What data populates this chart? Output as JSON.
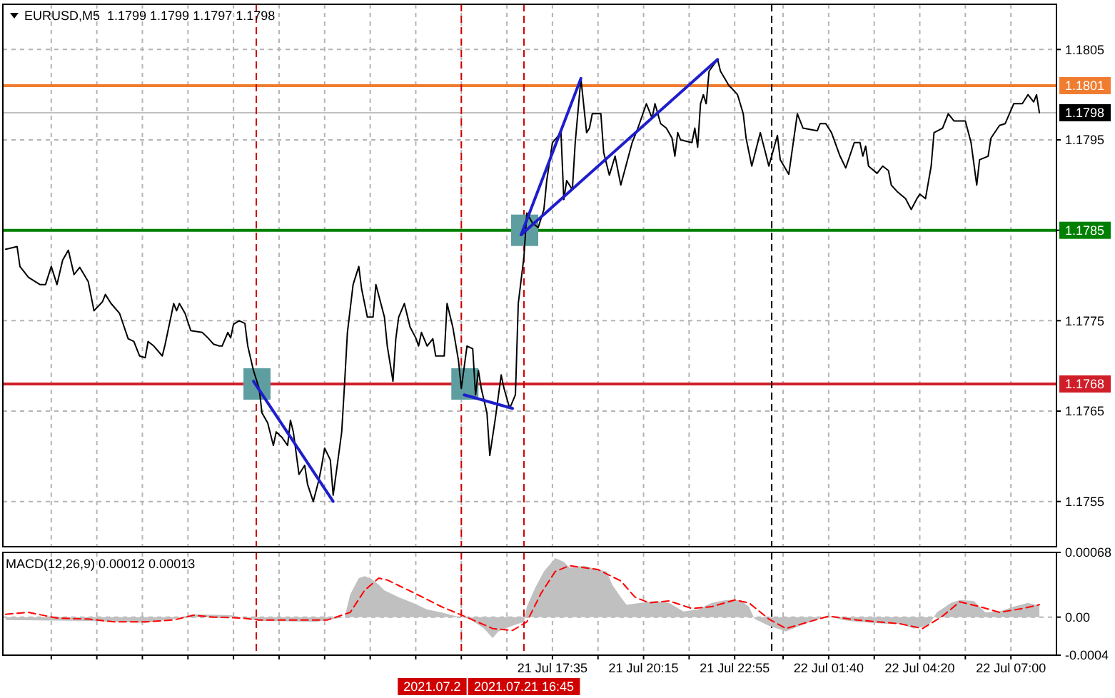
{
  "chart_data": [
    {
      "type": "line",
      "title": "EURUSD,M5  1.1799 1.1799 1.1797 1.1798",
      "xlim": [
        "2021-07-21T01:30",
        "2021-07-22T08:20"
      ],
      "ylim": [
        1.175,
        1.181
      ],
      "xticks": [
        "2021-07-21T02:55",
        "2021-07-21T04:15",
        "2021-07-21T05:35",
        "2021-07-21T06:55",
        "2021-07-21T08:15",
        "2021-07-21T09:35",
        "2021-07-21T10:55",
        "2021-07-21T12:15",
        "2021-07-21T13:35",
        "2021-07-21T14:55",
        "2021-07-21T16:15",
        "2021-07-21T17:35",
        "2021-07-21T18:55",
        "2021-07-21T20:15",
        "2021-07-21T21:35",
        "2021-07-21T22:55",
        "2021-07-22T00:20",
        "2021-07-22T01:40",
        "2021-07-22T03:00",
        "2021-07-22T04:20",
        "2021-07-22T05:40",
        "2021-07-22T07:00"
      ],
      "yticks": [
        1.1805,
        1.1795,
        {
          "value": 1.1785,
          "label": null
        },
        1.1775,
        1.1765,
        1.1755
      ],
      "tick_labels": "y",
      "grid": true,
      "ref_lines": [
        {
          "axis": "y",
          "value": 1.1801,
          "label": "1.1801",
          "color": "#f07c30"
        },
        {
          "axis": "y",
          "value": 1.1798,
          "label": "1.1798",
          "color": "#c0c0c0"
        },
        {
          "axis": "y",
          "value": 1.1785,
          "label": "1.1785",
          "color": "#008000"
        },
        {
          "axis": "y",
          "value": 1.1768,
          "label": "1.1768",
          "color": "#d01e28"
        },
        {
          "axis": "x",
          "value": "2021-07-21T08:55",
          "color": "#d00000",
          "line_style": "dashed"
        },
        {
          "axis": "x",
          "value": "2021-07-21T14:55",
          "color": "#d00000",
          "line_style": "dashed"
        },
        {
          "axis": "x",
          "value": "2021-07-21T16:45",
          "color": "#d00000",
          "line_style": "dashed"
        },
        {
          "axis": "x",
          "value": "2021-07-22T00:00",
          "color": "#000000",
          "line_style": "dashed"
        }
      ],
      "series": [
        {
          "type": "scatter",
          "marker": "square",
          "color": "#5f9ea0",
          "x": [
            "2021-07-21T08:55",
            "2021-07-21T15:00",
            "2021-07-21T16:45"
          ],
          "values": [
            1.1768,
            1.1768,
            1.1785
          ]
        },
        {
          "color": "#000000",
          "x": [
            "2021-07-21T01:35",
            "2021-07-21T01:55",
            "2021-07-21T02:00",
            "2021-07-21T02:15",
            "2021-07-21T02:35",
            "2021-07-21T02:45",
            "2021-07-21T02:55",
            "2021-07-21T03:05",
            "2021-07-21T03:15",
            "2021-07-21T03:25",
            "2021-07-21T03:35",
            "2021-07-21T03:45",
            "2021-07-21T04:00",
            "2021-07-21T04:10",
            "2021-07-21T04:25",
            "2021-07-21T04:30",
            "2021-07-21T04:40",
            "2021-07-21T04:55",
            "2021-07-21T05:10",
            "2021-07-21T05:20",
            "2021-07-21T05:30",
            "2021-07-21T05:40",
            "2021-07-21T05:45",
            "2021-07-21T05:55",
            "2021-07-21T06:10",
            "2021-07-21T06:15",
            "2021-07-21T06:30",
            "2021-07-21T06:35",
            "2021-07-21T06:40",
            "2021-07-21T06:50",
            "2021-07-21T07:00",
            "2021-07-21T07:20",
            "2021-07-21T07:30",
            "2021-07-21T07:40",
            "2021-07-21T07:50",
            "2021-07-21T07:55",
            "2021-07-21T08:05",
            "2021-07-21T08:10",
            "2021-07-21T08:15",
            "2021-07-21T08:25",
            "2021-07-21T08:35",
            "2021-07-21T08:40",
            "2021-07-21T08:50",
            "2021-07-21T09:00",
            "2021-07-21T09:05",
            "2021-07-21T09:15",
            "2021-07-21T09:25",
            "2021-07-21T09:30",
            "2021-07-21T09:40",
            "2021-07-21T09:50",
            "2021-07-21T09:55",
            "2021-07-21T10:00",
            "2021-07-21T10:10",
            "2021-07-21T10:20",
            "2021-07-21T10:25",
            "2021-07-21T10:35",
            "2021-07-21T10:45",
            "2021-07-21T10:50",
            "2021-07-21T10:55",
            "2021-07-21T11:05",
            "2021-07-21T11:10",
            "2021-07-21T11:15",
            "2021-07-21T11:25",
            "2021-07-21T11:30",
            "2021-07-21T11:35",
            "2021-07-21T11:45",
            "2021-07-21T11:55",
            "2021-07-21T12:00",
            "2021-07-21T12:10",
            "2021-07-21T12:20",
            "2021-07-21T12:25",
            "2021-07-21T12:40",
            "2021-07-21T12:45",
            "2021-07-21T12:55",
            "2021-07-21T13:00",
            "2021-07-21T13:05",
            "2021-07-21T13:15",
            "2021-07-21T13:25",
            "2021-07-21T13:35",
            "2021-07-21T13:40",
            "2021-07-21T13:45",
            "2021-07-21T13:55",
            "2021-07-21T14:05",
            "2021-07-21T14:10",
            "2021-07-21T14:25",
            "2021-07-21T14:30",
            "2021-07-21T14:40",
            "2021-07-21T14:50",
            "2021-07-21T14:55",
            "2021-07-21T15:05",
            "2021-07-21T15:15",
            "2021-07-21T15:20",
            "2021-07-21T15:25",
            "2021-07-21T15:30",
            "2021-07-21T15:40",
            "2021-07-21T15:45",
            "2021-07-21T15:55",
            "2021-07-21T16:05",
            "2021-07-21T16:10",
            "2021-07-21T16:20",
            "2021-07-21T16:30",
            "2021-07-21T16:35",
            "2021-07-21T16:45",
            "2021-07-21T16:50",
            "2021-07-21T17:00",
            "2021-07-21T17:10",
            "2021-07-21T17:20",
            "2021-07-21T17:25",
            "2021-07-21T17:35",
            "2021-07-21T17:50",
            "2021-07-21T17:55",
            "2021-07-21T18:00",
            "2021-07-21T18:10",
            "2021-07-21T18:15",
            "2021-07-21T18:25",
            "2021-07-21T18:35",
            "2021-07-21T18:40",
            "2021-07-21T18:45",
            "2021-07-21T19:00",
            "2021-07-21T19:05",
            "2021-07-21T19:15",
            "2021-07-21T19:25",
            "2021-07-21T19:35",
            "2021-07-21T19:55",
            "2021-07-21T20:05",
            "2021-07-21T20:20",
            "2021-07-21T20:30",
            "2021-07-21T20:35",
            "2021-07-21T20:45",
            "2021-07-21T20:55",
            "2021-07-21T21:05",
            "2021-07-21T21:10",
            "2021-07-21T21:15",
            "2021-07-21T21:20",
            "2021-07-21T21:40",
            "2021-07-21T21:45",
            "2021-07-21T21:50",
            "2021-07-21T21:55",
            "2021-07-21T22:00",
            "2021-07-21T22:05",
            "2021-07-21T22:10",
            "2021-07-21T22:25",
            "2021-07-21T22:30",
            "2021-07-21T22:45",
            "2021-07-21T22:50",
            "2021-07-21T23:00",
            "2021-07-21T23:10",
            "2021-07-21T23:15",
            "2021-07-21T23:25",
            "2021-07-21T23:40",
            "2021-07-21T23:55",
            "2021-07-22T00:10",
            "2021-07-22T00:15",
            "2021-07-22T00:30",
            "2021-07-22T00:45",
            "2021-07-22T00:55",
            "2021-07-22T01:20",
            "2021-07-22T01:25",
            "2021-07-22T01:35",
            "2021-07-22T01:45",
            "2021-07-22T02:00",
            "2021-07-22T02:10",
            "2021-07-22T02:25",
            "2021-07-22T02:35",
            "2021-07-22T02:40",
            "2021-07-22T02:45",
            "2021-07-22T02:50",
            "2021-07-22T03:05",
            "2021-07-22T03:15",
            "2021-07-22T03:25",
            "2021-07-22T03:30",
            "2021-07-22T03:40",
            "2021-07-22T03:55",
            "2021-07-22T04:05",
            "2021-07-22T04:15",
            "2021-07-22T04:20",
            "2021-07-22T04:30",
            "2021-07-22T04:40",
            "2021-07-22T04:45",
            "2021-07-22T05:00",
            "2021-07-22T05:10",
            "2021-07-22T05:20",
            "2021-07-22T05:40",
            "2021-07-22T05:50",
            "2021-07-22T06:00",
            "2021-07-22T06:05",
            "2021-07-22T06:20",
            "2021-07-22T06:25",
            "2021-07-22T06:40",
            "2021-07-22T06:50",
            "2021-07-22T07:05",
            "2021-07-22T07:20",
            "2021-07-22T07:30",
            "2021-07-22T07:40",
            "2021-07-22T07:45",
            "2021-07-22T07:50"
          ],
          "values": [
            1.17829,
            1.17832,
            1.1781,
            1.17798,
            1.1779,
            1.1779,
            1.1781,
            1.1779,
            1.17817,
            1.17828,
            1.17801,
            1.17809,
            1.17793,
            1.17761,
            1.17771,
            1.17779,
            1.17769,
            1.17758,
            1.1773,
            1.17727,
            1.17711,
            1.17709,
            1.17727,
            1.17722,
            1.17711,
            1.17724,
            1.17769,
            1.17761,
            1.17769,
            1.17758,
            1.17739,
            1.17737,
            1.17731,
            1.17724,
            1.17722,
            1.17722,
            1.17737,
            1.17731,
            1.17746,
            1.1775,
            1.17747,
            1.17722,
            1.17695,
            1.17675,
            1.17648,
            1.17637,
            1.17612,
            1.17627,
            1.17621,
            1.17612,
            1.1764,
            1.17627,
            1.1758,
            1.1759,
            1.17569,
            1.1755,
            1.17574,
            1.1759,
            1.17609,
            1.17596,
            1.17557,
            1.1758,
            1.17627,
            1.1768,
            1.17737,
            1.1779,
            1.1781,
            1.17785,
            1.17754,
            1.17754,
            1.1779,
            1.17754,
            1.17722,
            1.17683,
            1.1773,
            1.17754,
            1.17769,
            1.17743,
            1.17731,
            1.17722,
            1.17737,
            1.17722,
            1.1773,
            1.17711,
            1.17711,
            1.17769,
            1.17743,
            1.17706,
            1.17675,
            1.17722,
            1.17719,
            1.17668,
            1.17695,
            1.17675,
            1.17648,
            1.17601,
            1.17643,
            1.1769,
            1.17675,
            1.17653,
            1.17668,
            1.17769,
            1.17821,
            1.17869,
            1.17858,
            1.17853,
            1.17873,
            1.17905,
            1.17947,
            1.17958,
            1.17884,
            1.17905,
            1.17895,
            1.17947,
            1.18018,
            1.17958,
            1.17963,
            1.17979,
            1.17979,
            1.17936,
            1.17911,
            1.17932,
            1.179,
            1.17947,
            1.17963,
            1.1799,
            1.17974,
            1.1799,
            1.17968,
            1.17963,
            1.17952,
            1.17932,
            1.17958,
            1.1795,
            1.17947,
            1.17963,
            1.17942,
            1.1799,
            1.18,
            1.1799,
            1.18026,
            1.18039,
            1.18026,
            1.1801,
            1.18007,
            1.18,
            1.17979,
            1.17952,
            1.17921,
            1.17958,
            1.17921,
            1.17955,
            1.17928,
            1.17912,
            1.17979,
            1.17963,
            1.1796,
            1.17968,
            1.17968,
            1.17958,
            1.17932,
            1.17919,
            1.17947,
            1.17947,
            1.17932,
            1.17943,
            1.17921,
            1.17913,
            1.17921,
            1.17916,
            1.179,
            1.17893,
            1.17885,
            1.17873,
            1.17885,
            1.1789,
            1.17885,
            1.17921,
            1.17958,
            1.17963,
            1.17979,
            1.17971,
            1.17971,
            1.17947,
            1.179,
            1.17928,
            1.17932,
            1.17952,
            1.17966,
            1.17968,
            1.1799,
            1.1799,
            1.18,
            1.17992,
            1.18,
            1.1798
          ]
        },
        {
          "color": "#1e1ecc",
          "x": [
            "2021-07-21T08:50",
            "2021-07-21T11:10"
          ],
          "values": [
            1.17683,
            1.1755
          ]
        },
        {
          "color": "#1e1ecc",
          "x": [
            "2021-07-21T15:00",
            "2021-07-21T16:25"
          ],
          "values": [
            1.17668,
            1.17653
          ]
        },
        {
          "color": "#1e1ecc",
          "x": [
            "2021-07-21T16:40",
            "2021-07-21T18:25"
          ],
          "values": [
            1.17845,
            1.18018
          ]
        },
        {
          "color": "#1e1ecc",
          "x": [
            "2021-07-21T16:40",
            "2021-07-21T22:25"
          ],
          "values": [
            1.17845,
            1.18039
          ]
        }
      ]
    },
    {
      "type": "area",
      "title": "MACD(12,26,9) 0.00012 0.00013",
      "xlim": [
        "2021-07-21T01:30",
        "2021-07-22T08:20"
      ],
      "ylim": [
        -0.0004,
        0.00068
      ],
      "xticks": [
        {
          "value": "2021-07-21T02:55",
          "label": null
        },
        {
          "value": "2021-07-21T04:15",
          "label": null
        },
        {
          "value": "2021-07-21T05:35",
          "label": null
        },
        {
          "value": "2021-07-21T06:55",
          "label": null
        },
        {
          "value": "2021-07-21T08:15",
          "label": null
        },
        {
          "value": "2021-07-21T09:35",
          "label": null
        },
        {
          "value": "2021-07-21T10:55",
          "label": null
        },
        {
          "value": "2021-07-21T12:15",
          "label": null
        },
        {
          "value": "2021-07-21T13:35",
          "label": null
        },
        {
          "value": "2021-07-21T14:55",
          "label": null
        },
        {
          "value": "2021-07-21T16:15",
          "label": null
        },
        {
          "value": "2021-07-21T17:35",
          "label": "21 Jul 17:35"
        },
        {
          "value": "2021-07-21T18:55",
          "label": null
        },
        {
          "value": "2021-07-21T20:15",
          "label": "21 Jul 20:15"
        },
        {
          "value": "2021-07-21T21:35",
          "label": null
        },
        {
          "value": "2021-07-21T22:55",
          "label": "21 Jul 22:55"
        },
        {
          "value": "2021-07-22T00:20",
          "label": null
        },
        {
          "value": "2021-07-22T01:40",
          "label": "22 Jul 01:40"
        },
        {
          "value": "2021-07-22T03:00",
          "label": null
        },
        {
          "value": "2021-07-22T04:20",
          "label": "22 Jul 04:20"
        },
        {
          "value": "2021-07-22T05:40",
          "label": null
        },
        {
          "value": "2021-07-22T07:00",
          "label": "22 Jul 07:00"
        }
      ],
      "yticks": [
        0.00068,
        {
          "value": 0,
          "label": "0.00"
        },
        -0.0004
      ],
      "grid": true,
      "ref_lines": [
        {
          "axis": "x",
          "value": "2021-07-21T08:55",
          "color": "#d00000",
          "line_style": "dashed"
        },
        {
          "axis": "x",
          "value": "2021-07-21T14:55",
          "label": "2021.07.2",
          "color": "#d00000",
          "line_style": "dashed"
        },
        {
          "axis": "x",
          "value": "2021-07-21T16:45",
          "label": "2021.07.21 16:45",
          "color": "#d00000",
          "line_style": "dashed"
        },
        {
          "axis": "x",
          "value": "2021-07-22T00:00",
          "color": "#000000",
          "line_style": "dashed"
        }
      ],
      "series": [
        {
          "color": "#c0c0c0",
          "x": [
            "2021-07-21T01:35",
            "2021-07-21T04:00",
            "2021-07-21T05:40",
            "2021-07-21T06:30",
            "2021-07-21T07:05",
            "2021-07-21T08:10",
            "2021-07-21T09:00",
            "2021-07-21T10:40",
            "2021-07-21T11:30",
            "2021-07-21T11:40",
            "2021-07-21T11:55",
            "2021-07-21T12:05",
            "2021-07-21T12:15",
            "2021-07-21T12:30",
            "2021-07-21T12:40",
            "2021-07-21T13:05",
            "2021-07-21T13:30",
            "2021-07-21T13:55",
            "2021-07-21T14:20",
            "2021-07-21T14:45",
            "2021-07-21T15:10",
            "2021-07-21T15:35",
            "2021-07-21T15:50",
            "2021-07-21T16:00",
            "2021-07-21T16:25",
            "2021-07-21T16:45",
            "2021-07-21T16:50",
            "2021-07-21T17:05",
            "2021-07-21T17:20",
            "2021-07-21T17:40",
            "2021-07-21T17:55",
            "2021-07-21T18:05",
            "2021-07-21T18:30",
            "2021-07-21T18:55",
            "2021-07-21T19:10",
            "2021-07-21T19:20",
            "2021-07-21T19:35",
            "2021-07-21T19:45",
            "2021-07-21T20:10",
            "2021-07-21T20:35",
            "2021-07-21T21:00",
            "2021-07-21T21:25",
            "2021-07-21T21:50",
            "2021-07-21T22:15",
            "2021-07-21T22:40",
            "2021-07-21T23:05",
            "2021-07-21T23:20",
            "2021-07-21T23:30",
            "2021-07-21T23:55",
            "2021-07-22T00:25",
            "2021-07-22T00:50",
            "2021-07-22T01:15",
            "2021-07-22T01:40",
            "2021-07-22T02:05",
            "2021-07-22T02:30",
            "2021-07-22T03:20",
            "2021-07-22T03:45",
            "2021-07-22T04:10",
            "2021-07-22T04:35",
            "2021-07-22T04:50",
            "2021-07-22T05:15",
            "2021-07-22T05:30",
            "2021-07-22T05:55",
            "2021-07-22T06:15",
            "2021-07-22T06:40",
            "2021-07-22T07:05",
            "2021-07-22T07:30",
            "2021-07-22T07:50"
          ],
          "values": [
            -3e-05,
            -4e-05,
            -6e-05,
            -2e-05,
            3e-05,
            2e-05,
            -4e-05,
            -5e-05,
            0,
            0.00024,
            0.00041,
            0.00043,
            0.00041,
            0.00034,
            0.00028,
            0.00021,
            0.00015,
            8e-05,
            5e-05,
            1e-05,
            -2e-05,
            -0.00012,
            -0.00022,
            -0.00015,
            -9e-05,
            -5e-05,
            0.00011,
            0.00031,
            0.00048,
            0.00062,
            0.00058,
            0.00052,
            0.00054,
            0.0005,
            0.00048,
            0.00034,
            0.00021,
            0.00013,
            0.00015,
            0.00017,
            0.00015,
            6e-05,
            8e-05,
            0.00015,
            0.00018,
            0.00018,
            0.00011,
            -2e-05,
            -9e-05,
            -0.00015,
            -9e-05,
            -3e-05,
            1e-05,
            -3e-05,
            -5e-05,
            -7e-05,
            -7e-05,
            -0.00012,
            -9e-05,
            5e-05,
            0.00015,
            0.00018,
            0.00017,
            5e-05,
            6e-05,
            0.00011,
            0.00015,
            0.00012
          ]
        },
        {
          "type": "line",
          "color": "#ff0000",
          "line_style": "dashed",
          "x": [
            "2021-07-21T01:35",
            "2021-07-21T02:15",
            "2021-07-21T03:05",
            "2021-07-21T04:00",
            "2021-07-21T04:45",
            "2021-07-21T05:40",
            "2021-07-21T06:30",
            "2021-07-21T07:05",
            "2021-07-21T07:40",
            "2021-07-21T08:30",
            "2021-07-21T09:00",
            "2021-07-21T09:45",
            "2021-07-21T11:00",
            "2021-07-21T11:40",
            "2021-07-21T12:05",
            "2021-07-21T12:30",
            "2021-07-21T12:45",
            "2021-07-21T13:30",
            "2021-07-21T14:20",
            "2021-07-21T15:00",
            "2021-07-21T15:50",
            "2021-07-21T16:25",
            "2021-07-21T16:50",
            "2021-07-21T17:15",
            "2021-07-21T17:40",
            "2021-07-21T18:05",
            "2021-07-21T18:55",
            "2021-07-21T19:35",
            "2021-07-21T20:00",
            "2021-07-21T20:25",
            "2021-07-21T21:00",
            "2021-07-21T21:40",
            "2021-07-21T22:15",
            "2021-07-21T22:55",
            "2021-07-21T23:20",
            "2021-07-21T23:55",
            "2021-07-22T00:25",
            "2021-07-22T01:05",
            "2021-07-22T01:40",
            "2021-07-22T02:30",
            "2021-07-22T03:45",
            "2021-07-22T04:25",
            "2021-07-22T05:00",
            "2021-07-22T05:30",
            "2021-07-22T06:05",
            "2021-07-22T06:40",
            "2021-07-22T07:20",
            "2021-07-22T07:50"
          ],
          "values": [
            3e-05,
            5e-05,
            -1e-05,
            -2e-05,
            -5e-05,
            -5e-05,
            -3e-05,
            2e-05,
            0,
            -1e-05,
            -3e-05,
            -3e-05,
            -3e-05,
            5e-05,
            0.00028,
            0.00041,
            0.00039,
            0.00026,
            0.00011,
            1e-05,
            -0.00012,
            -0.00014,
            -5e-05,
            0.00025,
            0.00048,
            0.00054,
            0.0005,
            0.00038,
            0.00021,
            0.00015,
            0.00017,
            9e-05,
            0.00011,
            0.00018,
            0.00015,
            -2e-05,
            -0.00012,
            -5e-05,
            1e-05,
            -3e-05,
            -7e-05,
            -0.00012,
            1e-05,
            0.00016,
            0.00011,
            5e-05,
            9e-05,
            0.00013
          ]
        }
      ]
    }
  ]
}
